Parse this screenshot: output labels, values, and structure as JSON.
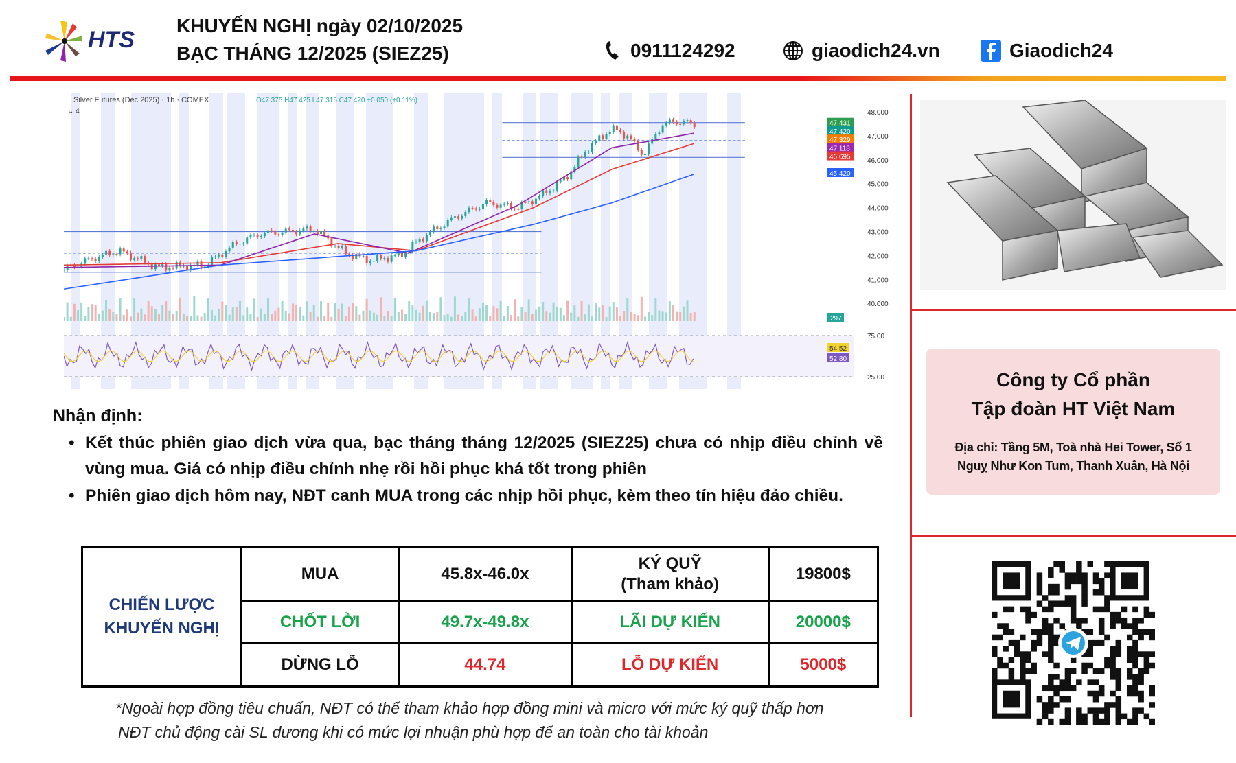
{
  "header": {
    "brand": "HTS",
    "title_line1": "KHUYẾN NGHỊ ngày 02/10/2025",
    "title_line2": "BẠC THÁNG 12/2025 (SIEZ25)",
    "phone": "0911124292",
    "website": "giaodich24.vn",
    "facebook": "Giaodich24",
    "rule_colors": [
      "#e8141b",
      "#f5b91f"
    ]
  },
  "chart_data": {
    "type": "line",
    "symbol_label": "Silver Futures (Dec 2025) · 1h · COMEX",
    "ohlc": {
      "open": "O47.375",
      "high": "H47.425",
      "low": "L47.315",
      "close": "C47.420",
      "change": "+0.050 (+0.11%)"
    },
    "indicator_toggle": "4",
    "price_axis": [
      "48.000",
      "47.000",
      "46.000",
      "45.000",
      "44.000",
      "43.000",
      "42.000",
      "41.000",
      "40.000"
    ],
    "price_tags": [
      {
        "value": "47.431",
        "color": "#2e9d4f"
      },
      {
        "value": "47.420",
        "color": "#0f9b8e"
      },
      {
        "value": "47.329",
        "color": "#f57c00"
      },
      {
        "value": "47.118",
        "color": "#9c27b0"
      },
      {
        "value": "46.695",
        "color": "#e53935"
      },
      {
        "value": "45.420",
        "color": "#2962ff"
      }
    ],
    "volume_tag": {
      "value": "297",
      "color": "#26a69a"
    },
    "rsi_axis": [
      "75.00",
      "25.00"
    ],
    "rsi_tags": [
      {
        "value": "54.52",
        "color": "#f2d22e"
      },
      {
        "value": "52.80",
        "color": "#7e57c2"
      }
    ],
    "ylim": [
      39.3,
      48.6
    ],
    "price_path": [
      [
        0,
        41.4
      ],
      [
        3,
        41.8
      ],
      [
        7,
        42.2
      ],
      [
        12,
        41.5
      ],
      [
        18,
        41.6
      ],
      [
        22,
        42.5
      ],
      [
        25,
        42.9
      ],
      [
        32,
        43.1
      ],
      [
        36,
        42.1
      ],
      [
        39,
        41.8
      ],
      [
        43,
        42.0
      ],
      [
        46,
        42.8
      ],
      [
        50,
        43.6
      ],
      [
        54,
        44.2
      ],
      [
        58,
        44.0
      ],
      [
        61,
        44.5
      ],
      [
        64,
        45.2
      ],
      [
        67,
        46.5
      ],
      [
        70,
        47.3
      ],
      [
        72,
        47.0
      ],
      [
        74,
        46.2
      ],
      [
        76.5,
        47.5
      ],
      [
        79,
        47.6
      ],
      [
        80.7,
        47.42
      ]
    ],
    "ma_red": [
      [
        0,
        41.6
      ],
      [
        20,
        41.7
      ],
      [
        35,
        42.5
      ],
      [
        45,
        42.2
      ],
      [
        60,
        44.0
      ],
      [
        70,
        45.6
      ],
      [
        80.7,
        46.695
      ]
    ],
    "ma_purple": [
      [
        0,
        41.5
      ],
      [
        20,
        41.6
      ],
      [
        32,
        42.9
      ],
      [
        44,
        42.1
      ],
      [
        58,
        44.1
      ],
      [
        70,
        46.5
      ],
      [
        80.7,
        47.118
      ]
    ],
    "ma_blue": [
      [
        0,
        40.6
      ],
      [
        20,
        41.6
      ],
      [
        45,
        42.2
      ],
      [
        60,
        43.3
      ],
      [
        70,
        44.2
      ],
      [
        80.7,
        45.42
      ]
    ],
    "levels": [
      {
        "price": 47.55,
        "from": 56,
        "to": 87,
        "style": "solid"
      },
      {
        "price": 46.8,
        "from": 56,
        "to": 87,
        "style": "dashed"
      },
      {
        "price": 46.1,
        "from": 56,
        "to": 87,
        "style": "solid"
      },
      {
        "price": 43.0,
        "from": 0,
        "to": 61,
        "style": "solid"
      },
      {
        "price": 42.1,
        "from": 0,
        "to": 61,
        "style": "dashed"
      },
      {
        "price": 41.3,
        "from": 0,
        "to": 61,
        "style": "solid"
      }
    ]
  },
  "analysis": {
    "heading": "Nhận định:",
    "bullets": [
      "Kết thúc phiên giao dịch vừa qua, bạc tháng tháng 12/2025 (SIEZ25) chưa có nhịp điều chỉnh về vùng mua. Giá có nhịp điều chỉnh nhẹ rồi hồi phục khá tốt trong phiên",
      "Phiên giao dịch hôm nay, NĐT canh MUA trong các nhịp hồi phục, kèm theo tín hiệu đảo chiều."
    ]
  },
  "strategy": {
    "label": "CHIẾN LƯỢC KHUYẾN NGHỊ",
    "rows": [
      [
        "MUA",
        "45.8x-46.0x",
        "KÝ QUỸ\n(Tham khảo)",
        "19800$"
      ],
      [
        "CHỐT LỜI",
        "49.7x-49.8x",
        "LÃI DỰ KIẾN",
        "20000$"
      ],
      [
        "DỪNG LỖ",
        "44.74",
        "LỖ DỰ KIẾN",
        "5000$"
      ]
    ]
  },
  "footnotes": [
    "*Ngoài hợp đồng tiêu chuẩn, NĐT có thể tham khảo hợp đồng mini và micro với mức ký quỹ thấp hơn",
    "NĐT chủ động cài SL dương khi có mức lợi nhuận phù hợp để an toàn cho tài khoản"
  ],
  "company": {
    "name_line1": "Công ty Cổ phần",
    "name_line2": "Tập đoàn HT Việt Nam",
    "address_line1": "Địa chỉ: Tầng 5M, Toà nhà Hei Tower, Số 1",
    "address_line2": "Nguỵ Như Kon Tum, Thanh Xuân, Hà Nội"
  }
}
